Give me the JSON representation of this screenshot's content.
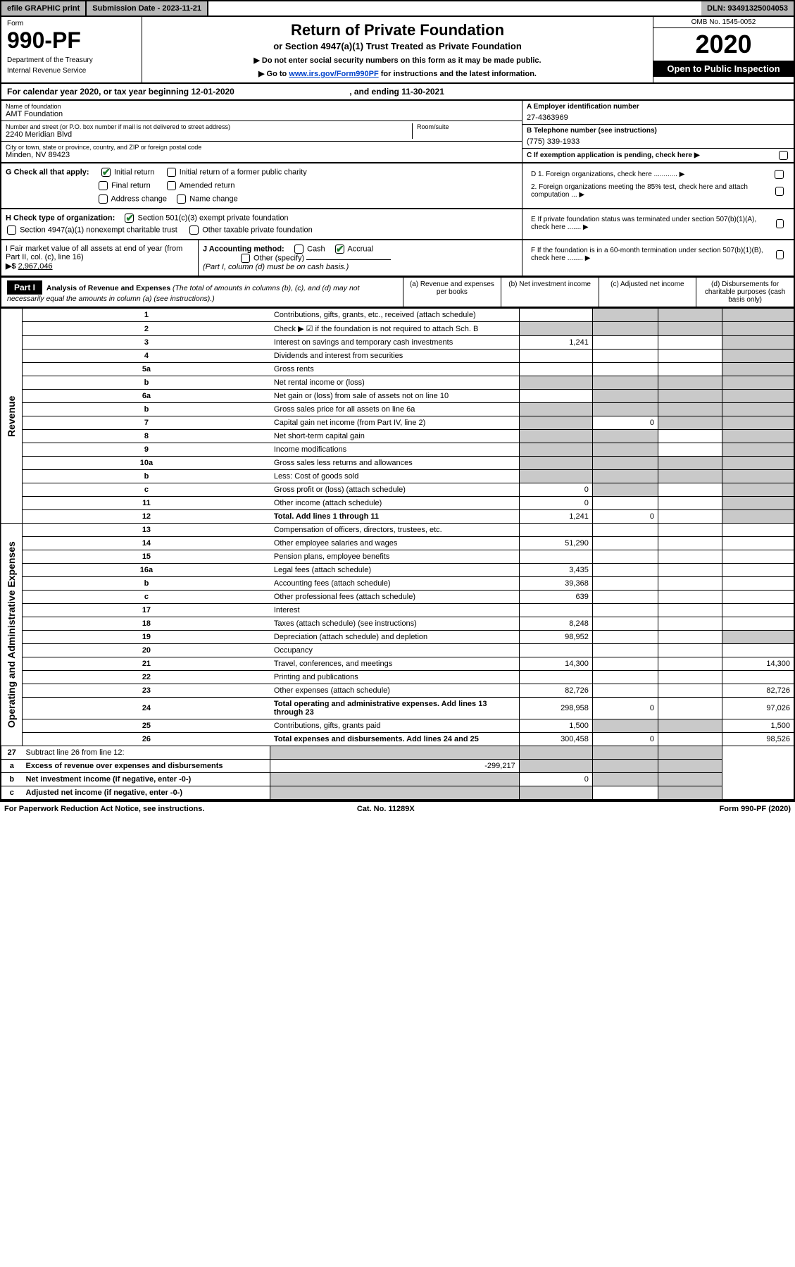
{
  "topbar": {
    "efile": "efile GRAPHIC print",
    "submission_label": "Submission Date - ",
    "submission_date": "2023-11-21",
    "dln_label": "DLN: ",
    "dln": "93491325004053"
  },
  "header": {
    "form_label": "Form",
    "form_no": "990-PF",
    "dept1": "Department of the Treasury",
    "dept2": "Internal Revenue Service",
    "title": "Return of Private Foundation",
    "subtitle": "or Section 4947(a)(1) Trust Treated as Private Foundation",
    "note1": "▶ Do not enter social security numbers on this form as it may be made public.",
    "note2_pre": "▶ Go to ",
    "note2_link": "www.irs.gov/Form990PF",
    "note2_post": " for instructions and the latest information.",
    "omb": "OMB No. 1545-0052",
    "year": "2020",
    "inspect": "Open to Public Inspection"
  },
  "calendar": {
    "text_pre": "For calendar year 2020, or tax year beginning ",
    "begin": "12-01-2020",
    "text_mid": " , and ending ",
    "end": "11-30-2021"
  },
  "foundation": {
    "name_label": "Name of foundation",
    "name": "AMT Foundation",
    "addr_label": "Number and street (or P.O. box number if mail is not delivered to street address)",
    "addr": "2240 Meridian Blvd",
    "room_label": "Room/suite",
    "city_label": "City or town, state or province, country, and ZIP or foreign postal code",
    "city": "Minden, NV  89423",
    "ein_label": "A Employer identification number",
    "ein": "27-4363969",
    "phone_label": "B Telephone number (see instructions)",
    "phone": "(775) 339-1933",
    "c_label": "C If exemption application is pending, check here ▶"
  },
  "sectionG": {
    "label": "G Check all that apply:",
    "initial": "Initial return",
    "initial_former": "Initial return of a former public charity",
    "final": "Final return",
    "amended": "Amended return",
    "address": "Address change",
    "name_change": "Name change"
  },
  "sectionH": {
    "label": "H Check type of organization:",
    "s501": "Section 501(c)(3) exempt private foundation",
    "s4947": "Section 4947(a)(1) nonexempt charitable trust",
    "other_tax": "Other taxable private foundation"
  },
  "sectionI": {
    "label": "I Fair market value of all assets at end of year (from Part II, col. (c), line 16)",
    "arrow": "▶$ ",
    "value": "2,967,046"
  },
  "sectionJ": {
    "label": "J Accounting method:",
    "cash": "Cash",
    "accrual": "Accrual",
    "other": "Other (specify)",
    "note": "(Part I, column (d) must be on cash basis.)"
  },
  "sectionD": {
    "d1": "D 1. Foreign organizations, check here ............ ▶",
    "d2": "2. Foreign organizations meeting the 85% test, check here and attach computation ... ▶"
  },
  "sectionE": "E If private foundation status was terminated under section 507(b)(1)(A), check here ....... ▶",
  "sectionF": "F If the foundation is in a 60-month termination under section 507(b)(1)(B), check here ........ ▶",
  "part1": {
    "hdr": "Part I",
    "title": "Analysis of Revenue and Expenses",
    "title_note": "(The total of amounts in columns (b), (c), and (d) may not necessarily equal the amounts in column (a) (see instructions).)",
    "col_a": "(a) Revenue and expenses per books",
    "col_b": "(b) Net investment income",
    "col_c": "(c) Adjusted net income",
    "col_d": "(d) Disbursements for charitable purposes (cash basis only)"
  },
  "side_labels": {
    "revenue": "Revenue",
    "expenses": "Operating and Administrative Expenses"
  },
  "rows": [
    {
      "n": "1",
      "d": "Contributions, gifts, grants, etc., received (attach schedule)",
      "a": "",
      "b": "gray",
      "c": "gray",
      "dd": "gray"
    },
    {
      "n": "2",
      "d": "Check ▶ ☑ if the foundation is not required to attach Sch. B",
      "a": "gray",
      "b": "gray",
      "c": "gray",
      "dd": "gray",
      "bold_not": true
    },
    {
      "n": "3",
      "d": "Interest on savings and temporary cash investments",
      "a": "1,241",
      "b": "",
      "c": "",
      "dd": "gray"
    },
    {
      "n": "4",
      "d": "Dividends and interest from securities",
      "a": "",
      "b": "",
      "c": "",
      "dd": "gray"
    },
    {
      "n": "5a",
      "d": "Gross rents",
      "a": "",
      "b": "",
      "c": "",
      "dd": "gray"
    },
    {
      "n": "b",
      "d": "Net rental income or (loss)",
      "a": "gray",
      "b": "gray",
      "c": "gray",
      "dd": "gray",
      "underline": true
    },
    {
      "n": "6a",
      "d": "Net gain or (loss) from sale of assets not on line 10",
      "a": "",
      "b": "gray",
      "c": "gray",
      "dd": "gray"
    },
    {
      "n": "b",
      "d": "Gross sales price for all assets on line 6a",
      "a": "gray",
      "b": "gray",
      "c": "gray",
      "dd": "gray",
      "underline": true
    },
    {
      "n": "7",
      "d": "Capital gain net income (from Part IV, line 2)",
      "a": "gray",
      "b": "0",
      "c": "gray",
      "dd": "gray"
    },
    {
      "n": "8",
      "d": "Net short-term capital gain",
      "a": "gray",
      "b": "gray",
      "c": "",
      "dd": "gray"
    },
    {
      "n": "9",
      "d": "Income modifications",
      "a": "gray",
      "b": "gray",
      "c": "",
      "dd": "gray"
    },
    {
      "n": "10a",
      "d": "Gross sales less returns and allowances",
      "a": "gray",
      "b": "gray",
      "c": "gray",
      "dd": "gray",
      "underline": true
    },
    {
      "n": "b",
      "d": "Less: Cost of goods sold",
      "a": "gray",
      "b": "gray",
      "c": "gray",
      "dd": "gray",
      "underline": true
    },
    {
      "n": "c",
      "d": "Gross profit or (loss) (attach schedule)",
      "a": "0",
      "b": "gray",
      "c": "",
      "dd": "gray"
    },
    {
      "n": "11",
      "d": "Other income (attach schedule)",
      "a": "0",
      "b": "",
      "c": "",
      "dd": "gray"
    },
    {
      "n": "12",
      "d": "Total. Add lines 1 through 11",
      "a": "1,241",
      "b": "0",
      "c": "",
      "dd": "gray",
      "bold": true
    }
  ],
  "exp_rows": [
    {
      "n": "13",
      "d": "Compensation of officers, directors, trustees, etc.",
      "a": "",
      "b": "",
      "c": "",
      "dd": ""
    },
    {
      "n": "14",
      "d": "Other employee salaries and wages",
      "a": "51,290",
      "b": "",
      "c": "",
      "dd": ""
    },
    {
      "n": "15",
      "d": "Pension plans, employee benefits",
      "a": "",
      "b": "",
      "c": "",
      "dd": ""
    },
    {
      "n": "16a",
      "d": "Legal fees (attach schedule)",
      "a": "3,435",
      "b": "",
      "c": "",
      "dd": ""
    },
    {
      "n": "b",
      "d": "Accounting fees (attach schedule)",
      "a": "39,368",
      "b": "",
      "c": "",
      "dd": ""
    },
    {
      "n": "c",
      "d": "Other professional fees (attach schedule)",
      "a": "639",
      "b": "",
      "c": "",
      "dd": ""
    },
    {
      "n": "17",
      "d": "Interest",
      "a": "",
      "b": "",
      "c": "",
      "dd": ""
    },
    {
      "n": "18",
      "d": "Taxes (attach schedule) (see instructions)",
      "a": "8,248",
      "b": "",
      "c": "",
      "dd": ""
    },
    {
      "n": "19",
      "d": "Depreciation (attach schedule) and depletion",
      "a": "98,952",
      "b": "",
      "c": "",
      "dd": "gray"
    },
    {
      "n": "20",
      "d": "Occupancy",
      "a": "",
      "b": "",
      "c": "",
      "dd": ""
    },
    {
      "n": "21",
      "d": "Travel, conferences, and meetings",
      "a": "14,300",
      "b": "",
      "c": "",
      "dd": "14,300"
    },
    {
      "n": "22",
      "d": "Printing and publications",
      "a": "",
      "b": "",
      "c": "",
      "dd": ""
    },
    {
      "n": "23",
      "d": "Other expenses (attach schedule)",
      "a": "82,726",
      "b": "",
      "c": "",
      "dd": "82,726"
    },
    {
      "n": "24",
      "d": "Total operating and administrative expenses. Add lines 13 through 23",
      "a": "298,958",
      "b": "0",
      "c": "",
      "dd": "97,026",
      "bold": true
    },
    {
      "n": "25",
      "d": "Contributions, gifts, grants paid",
      "a": "1,500",
      "b": "gray",
      "c": "gray",
      "dd": "1,500"
    },
    {
      "n": "26",
      "d": "Total expenses and disbursements. Add lines 24 and 25",
      "a": "300,458",
      "b": "0",
      "c": "",
      "dd": "98,526",
      "bold": true
    }
  ],
  "row27": [
    {
      "n": "27",
      "d": "Subtract line 26 from line 12:",
      "a": "gray",
      "b": "gray",
      "c": "gray",
      "dd": "gray"
    },
    {
      "n": "a",
      "d": "Excess of revenue over expenses and disbursements",
      "a": "-299,217",
      "b": "gray",
      "c": "gray",
      "dd": "gray",
      "bold": true
    },
    {
      "n": "b",
      "d": "Net investment income (if negative, enter -0-)",
      "a": "gray",
      "b": "0",
      "c": "gray",
      "dd": "gray",
      "bold": true
    },
    {
      "n": "c",
      "d": "Adjusted net income (if negative, enter -0-)",
      "a": "gray",
      "b": "gray",
      "c": "",
      "dd": "gray",
      "bold": true
    }
  ],
  "footer": {
    "left": "For Paperwork Reduction Act Notice, see instructions.",
    "mid": "Cat. No. 11289X",
    "right": "Form 990-PF (2020)"
  },
  "colors": {
    "gray": "#c9c9c9",
    "link": "#0044cc",
    "check": "#1a7a2a"
  }
}
